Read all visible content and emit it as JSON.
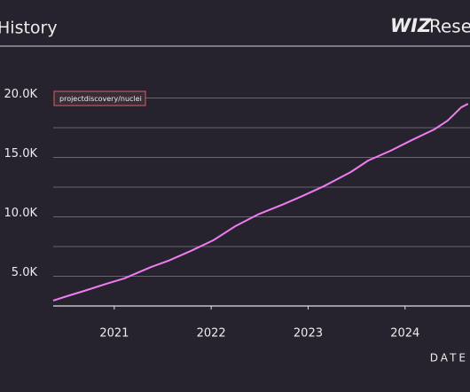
{
  "chart_data": {
    "type": "line",
    "title": "History",
    "brand": "WIZ",
    "brand_suffix": "Rese",
    "x_label": "DATE",
    "x": [
      2020.37,
      2020.51,
      2020.69,
      2020.92,
      2021.1,
      2021.38,
      2021.56,
      2021.79,
      2022.02,
      2022.25,
      2022.48,
      2022.75,
      2022.94,
      2023.16,
      2023.44,
      2023.62,
      2023.85,
      2024.07,
      2024.3,
      2024.44,
      2024.58,
      2024.65
    ],
    "series": [
      {
        "name": "projectdiscovery/nuclei",
        "color": "#f07cf2",
        "values": [
          2950,
          3320,
          3770,
          4370,
          4810,
          5780,
          6310,
          7130,
          8020,
          9220,
          10190,
          11080,
          11750,
          12570,
          13770,
          14740,
          15560,
          16460,
          17350,
          18100,
          19220,
          19510
        ]
      }
    ],
    "xlim": [
      2020.37,
      2024.67
    ],
    "xticks": [
      2021,
      2022,
      2023,
      2024
    ],
    "ylim": [
      2500,
      22500
    ],
    "yticks": [
      {
        "value": 5000,
        "label": "5.0K"
      },
      {
        "value": 10000,
        "label": "10.0K"
      },
      {
        "value": 15000,
        "label": "15.0K"
      },
      {
        "value": 20000,
        "label": "20.0K"
      }
    ],
    "ygrid_minor": [
      2500,
      7500,
      12500,
      17500
    ],
    "grid": true
  }
}
